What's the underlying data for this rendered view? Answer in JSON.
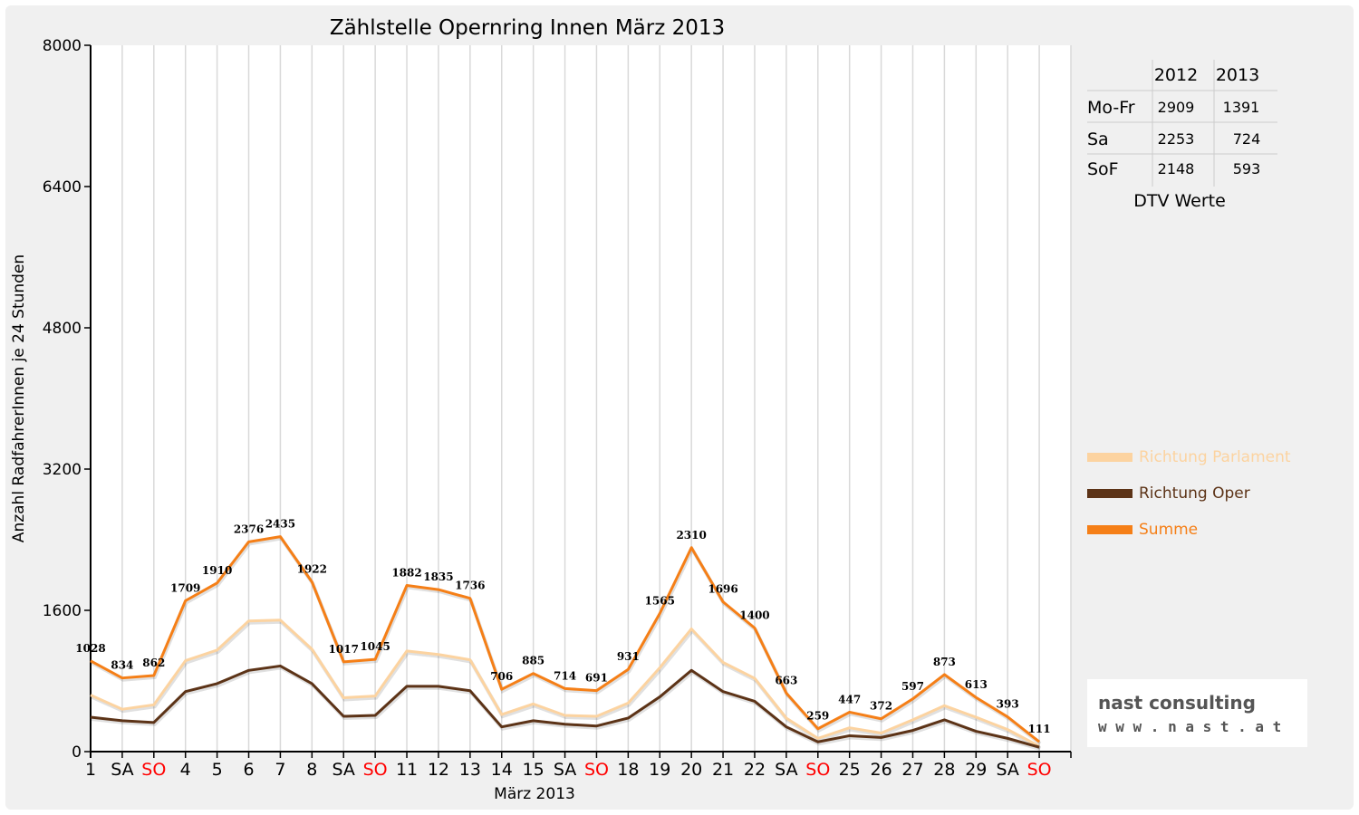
{
  "chart_data": {
    "type": "line",
    "title": "Zählstelle Opernring Innen März 2013",
    "xlabel": "März 2013",
    "ylabel": "Anzahl RadfahrerInnen je 24 Stunden",
    "ylim": [
      0,
      8000
    ],
    "yticks": [
      "0",
      "1600",
      "3200",
      "4800",
      "6400",
      "8000"
    ],
    "grid": true,
    "legend_position": "right",
    "categories": [
      "1",
      "SA",
      "SO",
      "4",
      "5",
      "6",
      "7",
      "8",
      "SA",
      "SO",
      "11",
      "12",
      "13",
      "14",
      "15",
      "SA",
      "SO",
      "18",
      "19",
      "20",
      "21",
      "22",
      "SA",
      "SO",
      "25",
      "26",
      "27",
      "28",
      "29",
      "SA",
      "SO"
    ],
    "weekend_color": "#ff0000",
    "series": [
      {
        "name": "Richtung Parlament",
        "color": "#fcd3a0",
        "values": [
          640,
          480,
          530,
          1030,
          1150,
          1480,
          1490,
          1160,
          610,
          630,
          1140,
          1100,
          1040,
          420,
          540,
          410,
          400,
          550,
          950,
          1390,
          1010,
          830,
          380,
          150,
          270,
          210,
          360,
          520,
          390,
          250,
          60
        ]
      },
      {
        "name": "Richtung Oper",
        "color": "#5c3317",
        "values": [
          390,
          350,
          330,
          680,
          770,
          920,
          970,
          770,
          400,
          410,
          740,
          740,
          690,
          280,
          350,
          310,
          290,
          380,
          620,
          920,
          680,
          570,
          280,
          110,
          180,
          160,
          240,
          360,
          230,
          150,
          50
        ]
      },
      {
        "name": "Summe",
        "color": "#f57f17",
        "values": [
          1028,
          834,
          862,
          1709,
          1910,
          2376,
          2435,
          1922,
          1017,
          1045,
          1882,
          1835,
          1736,
          706,
          885,
          714,
          691,
          931,
          1565,
          2310,
          1696,
          1400,
          663,
          259,
          447,
          372,
          597,
          873,
          613,
          393,
          111
        ]
      }
    ],
    "data_labels": [
      "1028",
      "834",
      "862",
      "1709",
      "1910",
      "2376",
      "2435",
      "1922",
      "1017",
      "1045",
      "1882",
      "1835",
      "1736",
      "706",
      "885",
      "714",
      "691",
      "931",
      "1565",
      "2310",
      "1696",
      "1400",
      "663",
      "259",
      "447",
      "372",
      "597",
      "873",
      "613",
      "393",
      "111"
    ]
  },
  "dtv_table": {
    "caption": "DTV Werte",
    "headers": [
      "",
      "2012",
      "2013"
    ],
    "rows": [
      {
        "label": "Mo-Fr",
        "v2012": "2909",
        "v2013": "1391"
      },
      {
        "label": "Sa",
        "v2012": "2253",
        "v2013": "724"
      },
      {
        "label": "SoF",
        "v2012": "2148",
        "v2013": "593"
      }
    ]
  },
  "logo": {
    "line1": "nast consulting",
    "line2": "w w w . n a s t . a t",
    "colors": {
      "nast": "#cc2222",
      "consulting": "#555555"
    }
  }
}
